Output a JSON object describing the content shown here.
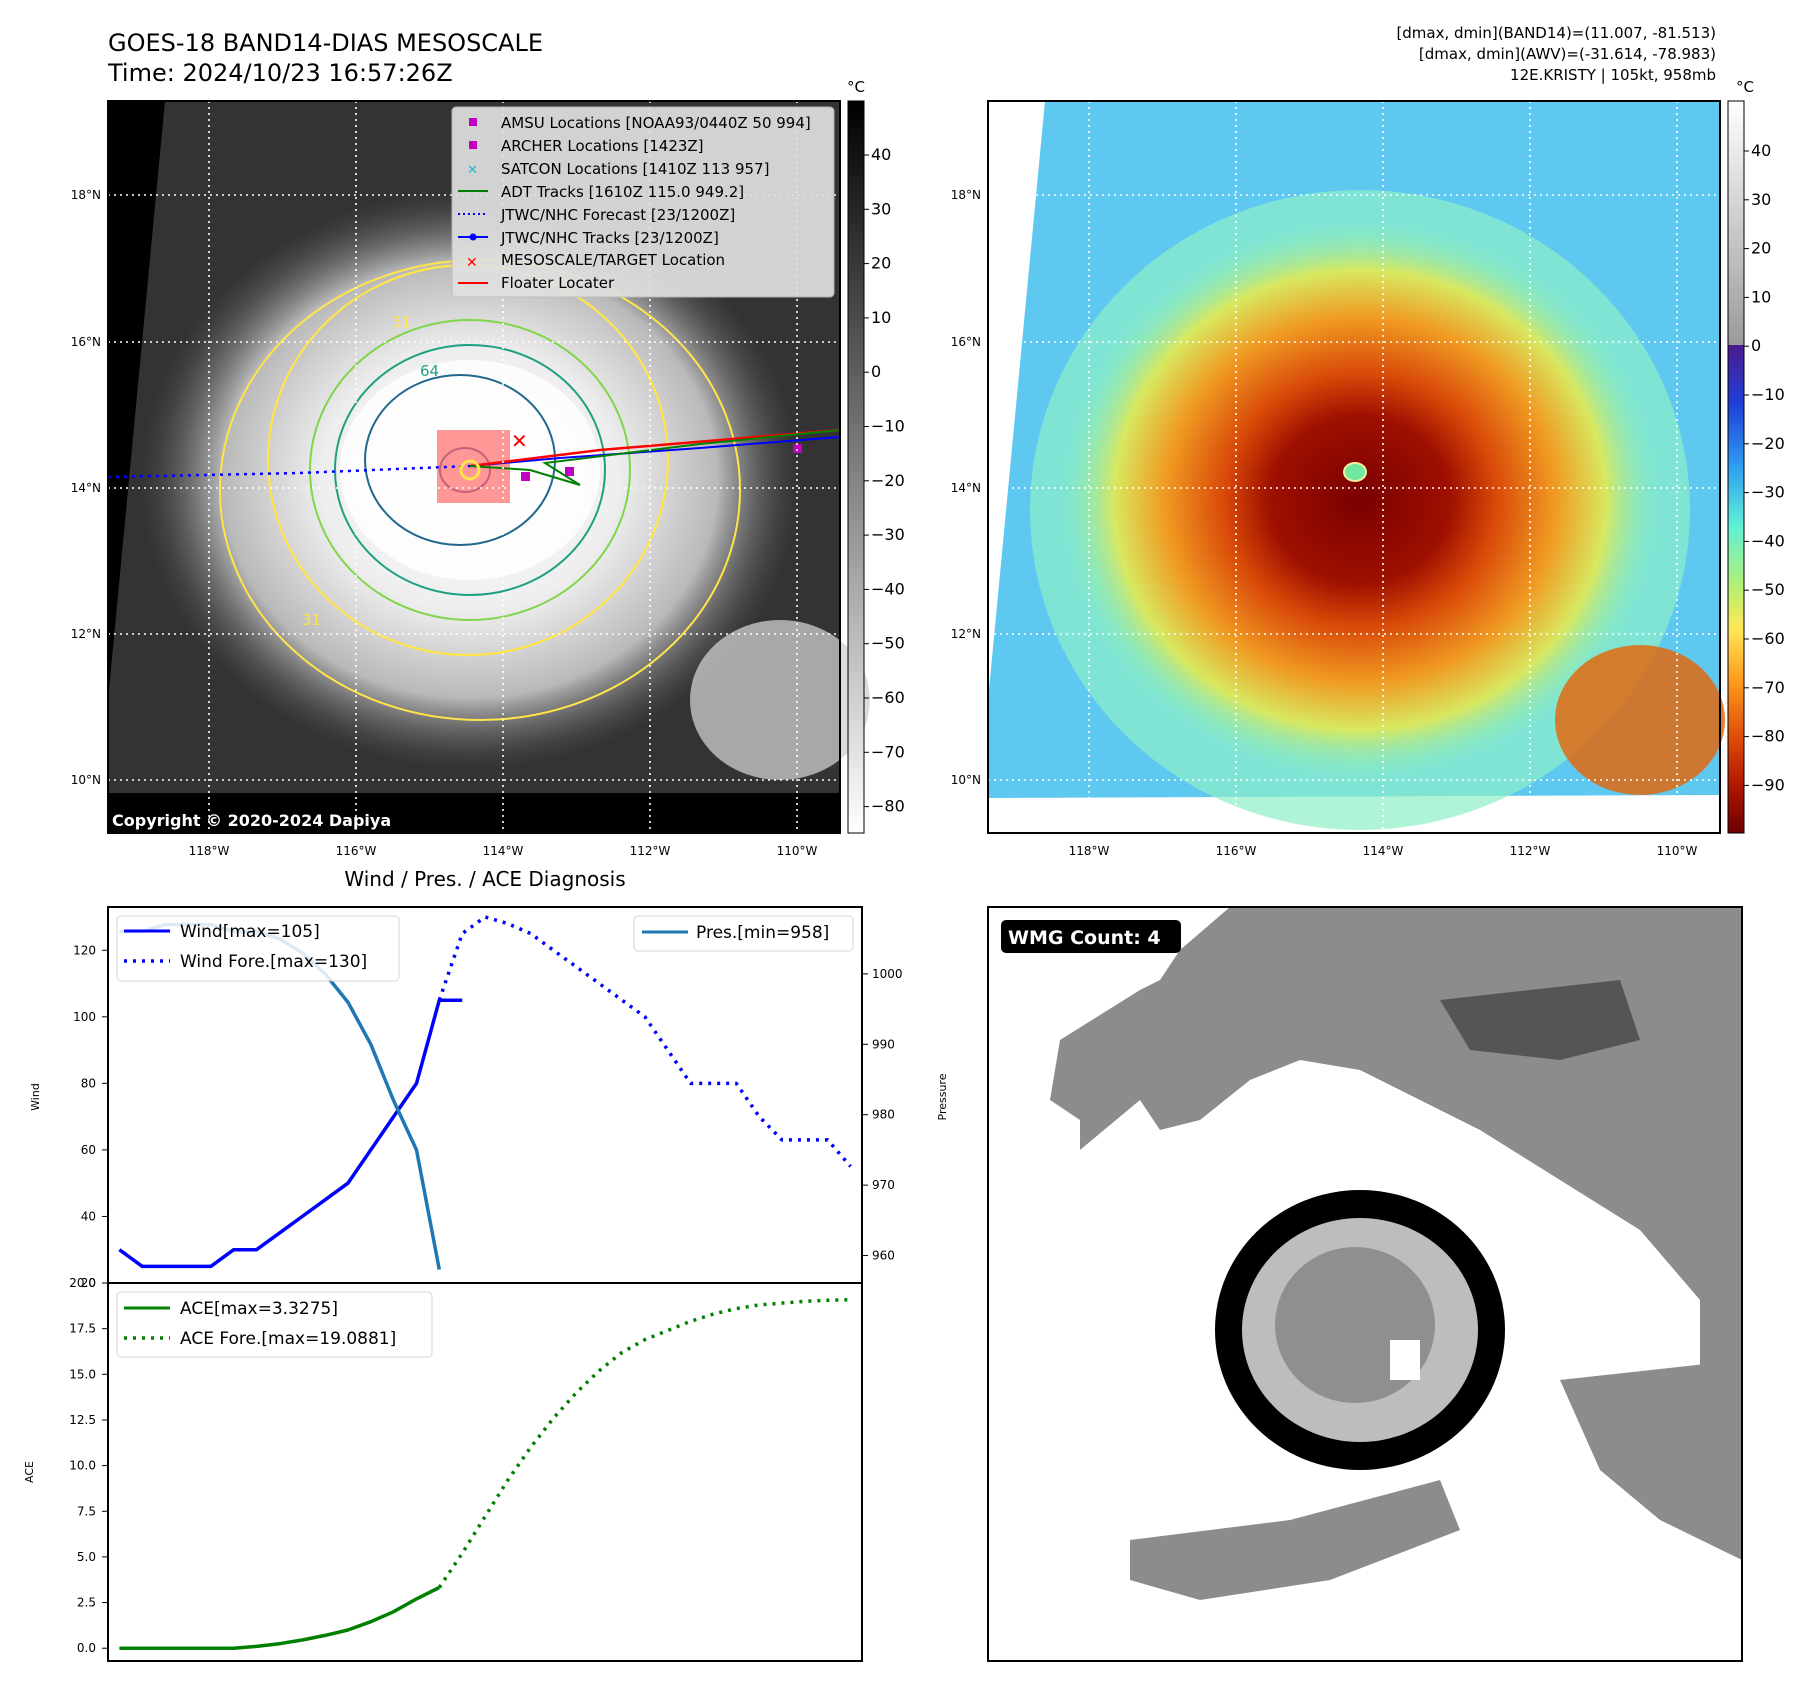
{
  "header": {
    "title_line1": "GOES-18 BAND14-DIAS MESOSCALE",
    "title_line2": "Time: 2024/10/23 16:57:26Z",
    "info_line1": "[dmax, dmin](BAND14)=(11.007, -81.513)",
    "info_line2": "[dmax, dmin](AWV)=(-31.614, -78.983)",
    "info_line3": "12E.KRISTY | 105kt, 958mb"
  },
  "map": {
    "lat_labels": [
      "18°N",
      "16°N",
      "14°N",
      "12°N",
      "10°N"
    ],
    "lon_labels": [
      "118°W",
      "116°W",
      "114°W",
      "112°W",
      "110°W"
    ],
    "copyright": "Copyright © 2020-2024 Dapiya",
    "contour_labels": [
      "31",
      "64",
      "31"
    ],
    "colorbar_unit": "°C",
    "gray_colorbar_ticks": [
      "40",
      "30",
      "20",
      "10",
      "0",
      "−10",
      "−20",
      "−30",
      "−40",
      "−50",
      "−60",
      "−70",
      "−80"
    ],
    "color_colorbar_ticks": [
      "40",
      "30",
      "20",
      "10",
      "0",
      "−10",
      "−20",
      "−30",
      "−40",
      "−50",
      "−60",
      "−70",
      "−80",
      "−90"
    ],
    "legend": [
      {
        "label": "AMSU Locations [NOAA93/0440Z 50 994]",
        "color": "#c000c0"
      },
      {
        "label": "ARCHER Locations [1423Z]",
        "color": "#c000c0"
      },
      {
        "label": "SATCON Locations [1410Z 113 957]",
        "color": "#17becf"
      },
      {
        "label": "ADT Tracks [1610Z 115.0 949.2]",
        "color": "#008000"
      },
      {
        "label": "JTWC/NHC Forecast [23/1200Z]",
        "color": "#0000ff"
      },
      {
        "label": "JTWC/NHC Tracks [23/1200Z]",
        "color": "#0000ff"
      },
      {
        "label": "MESOSCALE/TARGET Location",
        "color": "#ff0000"
      },
      {
        "label": "Floater Locater",
        "color": "#ff0000"
      }
    ]
  },
  "wmg": {
    "label": "WMG Count: 4"
  },
  "chart_data": [
    {
      "type": "line",
      "title": "Wind / Pres. / ACE Diagnosis",
      "ylabel": "Wind",
      "ylabel_right": "Pressure",
      "ylim": [
        20,
        133
      ],
      "ylim_right": [
        956.1,
        1009.5
      ],
      "yticks": [
        20,
        40,
        60,
        80,
        100,
        120
      ],
      "yticks_right": [
        960,
        970,
        980,
        990,
        1000
      ],
      "legend_left": [
        "Wind[max=105]",
        "Wind Fore.[max=130]"
      ],
      "legend_right": [
        "Pres.[min=958]"
      ],
      "xlim": [
        -0.5,
        32.5
      ],
      "series": [
        {
          "name": "Wind[max=105]",
          "style": "solid",
          "color": "#0000ff",
          "x": [
            0,
            1,
            2,
            3,
            4,
            5,
            6,
            7,
            8,
            9,
            10,
            11,
            12,
            13,
            14,
            15
          ],
          "y": [
            30,
            25,
            25,
            25,
            25,
            30,
            30,
            35,
            40,
            45,
            50,
            60,
            70,
            80,
            105,
            105
          ]
        },
        {
          "name": "Wind Fore.[max=130]",
          "style": "dotted",
          "color": "#0000ff",
          "x": [
            14,
            15,
            16,
            17,
            18,
            19,
            20,
            21,
            22,
            23,
            24,
            25,
            26,
            27,
            28,
            29,
            30,
            31,
            32
          ],
          "y": [
            105,
            125,
            130,
            128,
            125,
            120,
            115,
            110,
            105,
            100,
            90,
            80,
            80,
            80,
            70,
            63,
            63,
            63,
            55
          ]
        },
        {
          "name": "Pres.[min=958]",
          "style": "solid",
          "color": "#1f77b4",
          "x": [
            0,
            1,
            2,
            3,
            4,
            5,
            6,
            7,
            8,
            9,
            10,
            11,
            12,
            13,
            14
          ],
          "y": [
            1006,
            1006,
            1007,
            1007,
            1007,
            1006,
            1006,
            1005,
            1003,
            1000,
            996,
            990,
            982,
            975,
            958
          ]
        }
      ]
    },
    {
      "type": "line",
      "ylabel": "ACE",
      "ylim": [
        -0.7,
        20
      ],
      "yticks": [
        "0.0",
        "2.5",
        "5.0",
        "7.5",
        "10.0",
        "12.5",
        "15.0",
        "17.5",
        "20.0"
      ],
      "legend": [
        "ACE[max=3.3275]",
        "ACE Fore.[max=19.0881]"
      ],
      "xlim": [
        -0.5,
        32.5
      ],
      "series": [
        {
          "name": "ACE[max=3.3275]",
          "style": "solid",
          "color": "#008000",
          "x": [
            0,
            1,
            2,
            3,
            4,
            5,
            6,
            7,
            8,
            9,
            10,
            11,
            12,
            13,
            14
          ],
          "y": [
            0,
            0,
            0,
            0,
            0,
            0,
            0.1,
            0.25,
            0.45,
            0.7,
            1.0,
            1.45,
            2.0,
            2.7,
            3.3275
          ]
        },
        {
          "name": "ACE Fore.[max=19.0881]",
          "style": "dotted",
          "color": "#008000",
          "x": [
            14,
            15,
            16,
            17,
            18,
            19,
            20,
            21,
            22,
            23,
            24,
            25,
            26,
            27,
            28,
            29,
            30,
            31,
            32
          ],
          "y": [
            3.3275,
            5.2,
            7.2,
            9.2,
            11.0,
            12.6,
            14.0,
            15.2,
            16.2,
            16.9,
            17.4,
            17.9,
            18.3,
            18.6,
            18.8,
            18.9,
            19.0,
            19.05,
            19.0881
          ]
        }
      ]
    }
  ]
}
